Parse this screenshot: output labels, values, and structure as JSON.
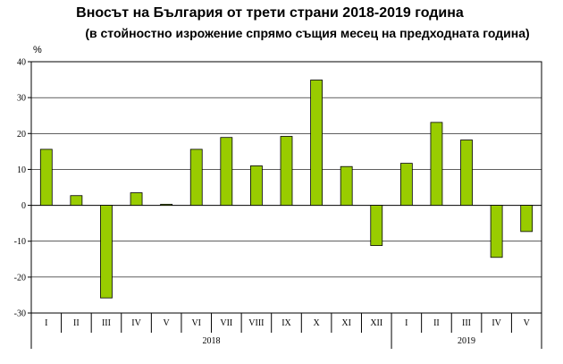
{
  "chart_data": {
    "type": "bar",
    "title": "Вносът на България от трети страни 2018-2019 година",
    "subtitle": "(в стойностно изрожение спрямо същия месец на предходната година)",
    "ylabel": "%",
    "ylim": [
      -30,
      40
    ],
    "yticks": [
      "-30",
      "-20",
      "-10",
      "0",
      "10",
      "20",
      "30",
      "40"
    ],
    "grid": true,
    "categories": [
      "I",
      "II",
      "III",
      "IV",
      "V",
      "VI",
      "VII",
      "VIII",
      "IX",
      "X",
      "XI",
      "XII",
      "I",
      "II",
      "III",
      "IV",
      "V"
    ],
    "groups": [
      {
        "label": "2018",
        "count": 12
      },
      {
        "label": "2019",
        "count": 5
      }
    ],
    "values": [
      15.6,
      2.7,
      -25.8,
      3.5,
      0.3,
      15.6,
      18.9,
      11.0,
      19.2,
      34.9,
      10.8,
      -11.2,
      11.7,
      23.1,
      18.2,
      -14.5,
      -7.3
    ],
    "bar_color": "#99cc00"
  }
}
